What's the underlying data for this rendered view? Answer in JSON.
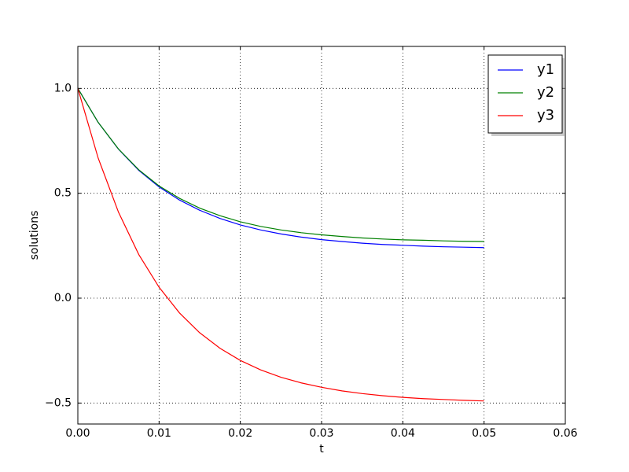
{
  "chart_data": {
    "type": "line",
    "xlabel": "t",
    "ylabel": "solutions",
    "x": [
      0,
      0.0025,
      0.005,
      0.0075,
      0.01,
      0.0125,
      0.015,
      0.0175,
      0.02,
      0.0225,
      0.025,
      0.0275,
      0.03,
      0.0325,
      0.035,
      0.0375,
      0.04,
      0.0425,
      0.045,
      0.0475,
      0.05
    ],
    "series": [
      {
        "name": "y1",
        "color": "#0000ff",
        "values": [
          1.0,
          0.838,
          0.71,
          0.609,
          0.53,
          0.468,
          0.419,
          0.38,
          0.349,
          0.325,
          0.306,
          0.291,
          0.279,
          0.27,
          0.262,
          0.256,
          0.252,
          0.248,
          0.245,
          0.243,
          0.241
        ]
      },
      {
        "name": "y2",
        "color": "#008000",
        "values": [
          1.0,
          0.838,
          0.711,
          0.612,
          0.535,
          0.476,
          0.429,
          0.393,
          0.364,
          0.342,
          0.325,
          0.312,
          0.302,
          0.294,
          0.287,
          0.282,
          0.278,
          0.276,
          0.273,
          0.271,
          0.27
        ]
      },
      {
        "name": "y3",
        "color": "#ff0000",
        "values": [
          1.0,
          0.668,
          0.41,
          0.208,
          0.052,
          -0.07,
          -0.165,
          -0.239,
          -0.297,
          -0.342,
          -0.377,
          -0.404,
          -0.425,
          -0.442,
          -0.455,
          -0.465,
          -0.473,
          -0.479,
          -0.483,
          -0.487,
          -0.49
        ]
      }
    ],
    "xlim": [
      0,
      0.06
    ],
    "xticks": [
      {
        "value": 0,
        "label": "0.00"
      },
      {
        "value": 0.01,
        "label": "0.01"
      },
      {
        "value": 0.02,
        "label": "0.02"
      },
      {
        "value": 0.03,
        "label": "0.03"
      },
      {
        "value": 0.04,
        "label": "0.04"
      },
      {
        "value": 0.05,
        "label": "0.05"
      },
      {
        "value": 0.06,
        "label": "0.06"
      }
    ],
    "ylim": [
      -0.6,
      1.2
    ],
    "yticks": [
      {
        "value": -0.5,
        "label": "−0.5"
      },
      {
        "value": 0,
        "label": "0.0"
      },
      0.5,
      {
        "value": 1,
        "label": "1.0"
      }
    ],
    "grid": true,
    "legend": "upper right"
  }
}
